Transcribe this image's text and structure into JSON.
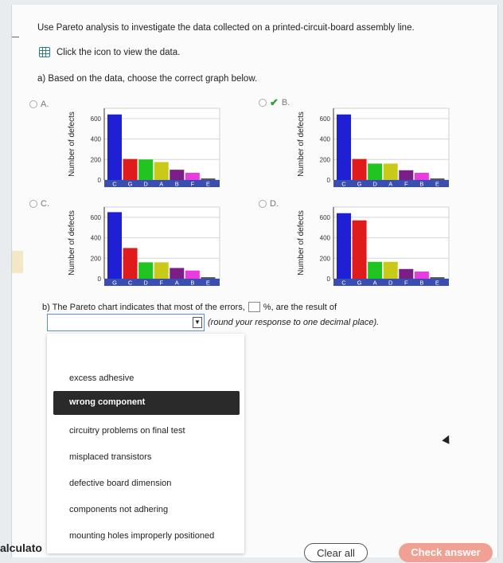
{
  "question": "Use Pareto analysis to investigate the data collected on a printed-circuit-board assembly line.",
  "view_data_label": "Click the icon to view the data.",
  "part_a_prompt": "a) Based on the data, choose the correct graph below.",
  "chart_data": [
    {
      "type": "bar",
      "option": "A.",
      "selected": false,
      "ylabel": "Number of defects",
      "yticks": [
        0,
        200,
        400,
        600
      ],
      "ylim": [
        0,
        700
      ],
      "categories": [
        "C",
        "G",
        "D",
        "A",
        "B",
        "F",
        "E"
      ],
      "values": [
        640,
        205,
        200,
        175,
        100,
        70,
        15
      ],
      "colors": [
        "#1f1fd6",
        "#e01b1b",
        "#22c422",
        "#c9c918",
        "#7b1f86",
        "#e83be0",
        "#555555"
      ]
    },
    {
      "type": "bar",
      "option": "B.",
      "selected": true,
      "ylabel": "Number of defects",
      "yticks": [
        0,
        200,
        400,
        600
      ],
      "ylim": [
        0,
        700
      ],
      "categories": [
        "C",
        "G",
        "D",
        "A",
        "F",
        "B",
        "E"
      ],
      "values": [
        640,
        205,
        160,
        160,
        95,
        70,
        15
      ],
      "colors": [
        "#1f1fd6",
        "#e01b1b",
        "#22c422",
        "#c9c918",
        "#7b1f86",
        "#e83be0",
        "#555555"
      ]
    },
    {
      "type": "bar",
      "option": "C.",
      "selected": false,
      "ylabel": "Number of defects",
      "yticks": [
        0,
        200,
        400,
        600
      ],
      "ylim": [
        0,
        700
      ],
      "categories": [
        "G",
        "C",
        "D",
        "F",
        "A",
        "B",
        "E"
      ],
      "values": [
        650,
        300,
        160,
        160,
        105,
        80,
        15
      ],
      "colors": [
        "#1f1fd6",
        "#e01b1b",
        "#22c422",
        "#c9c918",
        "#7b1f86",
        "#e83be0",
        "#555555"
      ]
    },
    {
      "type": "bar",
      "option": "D.",
      "selected": false,
      "ylabel": "Number of defects",
      "yticks": [
        0,
        200,
        400,
        600
      ],
      "ylim": [
        0,
        700
      ],
      "categories": [
        "C",
        "G",
        "A",
        "D",
        "F",
        "B",
        "E"
      ],
      "values": [
        640,
        570,
        165,
        165,
        95,
        70,
        15
      ],
      "colors": [
        "#1f1fd6",
        "#e01b1b",
        "#22c422",
        "#c9c918",
        "#7b1f86",
        "#e83be0",
        "#555555"
      ]
    }
  ],
  "part_b": {
    "prefix": "b) The Pareto chart indicates that most of the errors,",
    "suffix": "%, are the result of",
    "round_note": "(round your response to one decimal place)."
  },
  "dropdown": {
    "options": [
      "excess adhesive",
      "wrong component",
      "circuitry problems on final test",
      "misplaced transistors",
      "defective board dimension",
      "components not adhering",
      "mounting holes improperly positioned"
    ],
    "highlighted": "wrong component"
  },
  "calculator_label": "alculato",
  "clear_all": "Clear all",
  "check_answer": "Check answer"
}
